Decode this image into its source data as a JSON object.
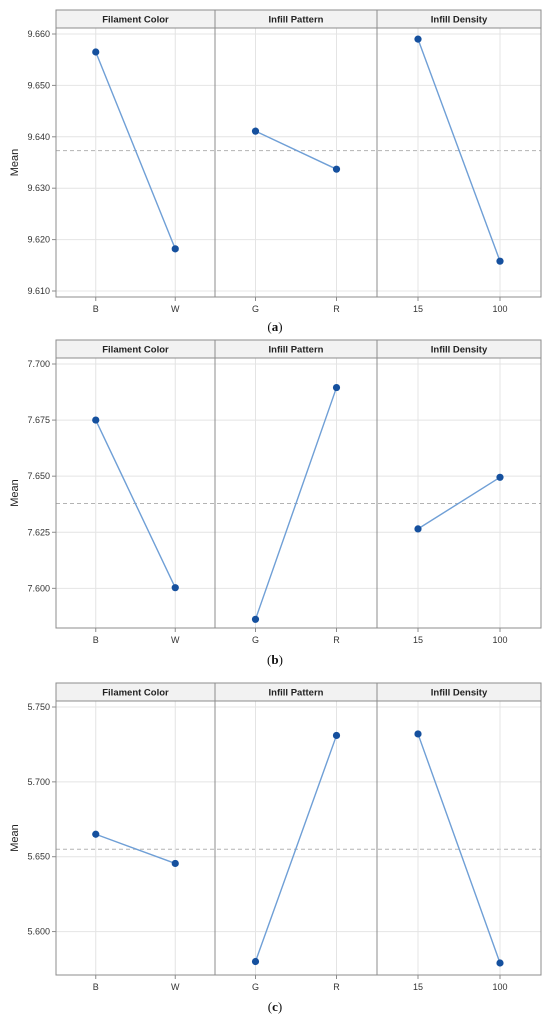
{
  "chart_data": [
    {
      "type": "line",
      "caption": "a",
      "ylabel": "Mean",
      "ylim": [
        9.61,
        9.66
      ],
      "yticks": [
        "9.610",
        "9.620",
        "9.630",
        "9.640",
        "9.650",
        "9.660"
      ],
      "reference_mean": 9.6373,
      "grid": true,
      "panels": [
        {
          "title": "Filament Color",
          "categories": [
            "B",
            "W"
          ],
          "values": [
            9.6565,
            9.6182
          ]
        },
        {
          "title": "Infill Pattern",
          "categories": [
            "G",
            "R"
          ],
          "values": [
            9.6411,
            9.6337
          ]
        },
        {
          "title": "Infill Density",
          "categories": [
            "15",
            "100"
          ],
          "values": [
            9.659,
            9.6158
          ]
        }
      ]
    },
    {
      "type": "line",
      "caption": "b",
      "ylabel": "Mean",
      "ylim": [
        7.585,
        7.7
      ],
      "yticks": [
        "7.600",
        "7.625",
        "7.650",
        "7.675",
        "7.700"
      ],
      "reference_mean": 7.6378,
      "grid": true,
      "panels": [
        {
          "title": "Filament Color",
          "categories": [
            "B",
            "W"
          ],
          "values": [
            7.675,
            7.6003
          ]
        },
        {
          "title": "Infill Pattern",
          "categories": [
            "G",
            "R"
          ],
          "values": [
            7.5862,
            7.6895
          ]
        },
        {
          "title": "Infill Density",
          "categories": [
            "15",
            "100"
          ],
          "values": [
            7.6265,
            7.6495
          ]
        }
      ]
    },
    {
      "type": "line",
      "caption": "c",
      "ylabel": "Mean",
      "ylim": [
        5.575,
        5.75
      ],
      "yticks": [
        "5.600",
        "5.650",
        "5.700",
        "5.750"
      ],
      "reference_mean": 5.655,
      "grid": true,
      "panels": [
        {
          "title": "Filament Color",
          "categories": [
            "B",
            "W"
          ],
          "values": [
            5.665,
            5.6455
          ]
        },
        {
          "title": "Infill Pattern",
          "categories": [
            "G",
            "R"
          ],
          "values": [
            5.58,
            5.731
          ]
        },
        {
          "title": "Infill Density",
          "categories": [
            "15",
            "100"
          ],
          "values": [
            5.732,
            5.579
          ]
        }
      ]
    }
  ],
  "colors": {
    "line": "#6f9fd6",
    "marker": "#15509e",
    "reference": "#b3b3b3",
    "grid": "#e4e4e4",
    "frame": "#8c8c8c",
    "header_bg": "#f2f2f2"
  }
}
